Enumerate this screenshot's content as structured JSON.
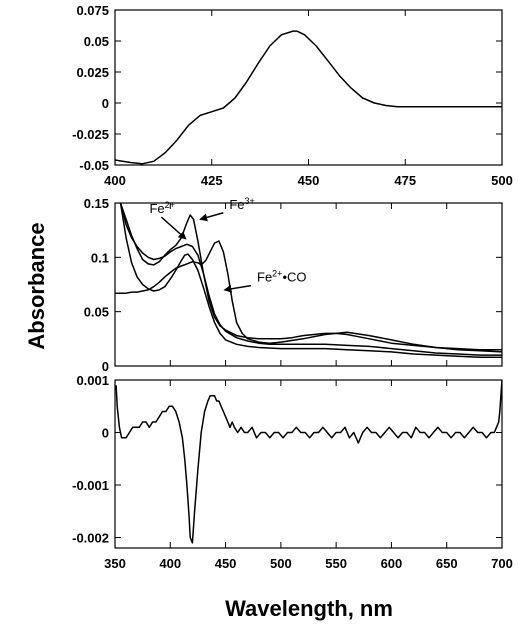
{
  "figure": {
    "ylabel": "Absorbance",
    "xlabel": "Wavelength, nm"
  },
  "chart_data": [
    {
      "type": "line",
      "x_ticks": [
        400,
        425,
        450,
        475,
        500
      ],
      "y_ticks": [
        -0.05,
        -0.025,
        0,
        0.025,
        0.05,
        0.075
      ],
      "xlim": [
        400,
        500
      ],
      "ylim": [
        -0.05,
        0.075
      ],
      "series": [
        {
          "x": [
            400,
            404,
            407,
            410,
            413,
            416,
            419,
            422,
            425,
            428,
            431,
            434,
            437,
            440,
            443,
            446,
            447,
            449,
            452,
            455,
            458,
            461,
            464,
            467,
            470,
            473,
            476,
            480,
            485,
            490,
            495,
            500
          ],
          "y": [
            -0.046,
            -0.048,
            -0.049,
            -0.047,
            -0.04,
            -0.03,
            -0.018,
            -0.01,
            -0.007,
            -0.004,
            0.004,
            0.017,
            0.032,
            0.046,
            0.055,
            0.058,
            0.058,
            0.055,
            0.046,
            0.034,
            0.022,
            0.012,
            0.004,
            0.0,
            -0.002,
            -0.003,
            -0.003,
            -0.003,
            -0.003,
            -0.003,
            -0.003,
            -0.003
          ]
        }
      ]
    },
    {
      "type": "line",
      "x_ticks": [
        350,
        400,
        450,
        500,
        550,
        600,
        650,
        700
      ],
      "y_ticks": [
        0,
        0.05,
        0.1,
        0.15
      ],
      "xlim": [
        350,
        700
      ],
      "ylim": [
        0,
        0.15
      ],
      "annotations": [
        {
          "label": "Fe",
          "sup": "2+",
          "tail": "",
          "ax": 392,
          "ay": 0.137,
          "tx": 414,
          "ty": 0.117
        },
        {
          "label": "Fe",
          "sup": "3+",
          "tail": "",
          "ax": 448,
          "ay": 0.141,
          "tx": 427,
          "ty": 0.135
        },
        {
          "label": "Fe",
          "sup": "2+",
          "tail": "•CO",
          "ax": 473,
          "ay": 0.074,
          "tx": 449,
          "ty": 0.07
        }
      ],
      "series": [
        {
          "x": [
            355,
            360,
            365,
            370,
            375,
            380,
            385,
            390,
            395,
            400,
            405,
            410,
            415,
            418,
            421,
            425,
            430,
            435,
            440,
            445,
            450,
            460,
            470,
            480,
            490,
            500,
            510,
            520,
            530,
            540,
            550,
            560,
            570,
            580,
            590,
            600,
            620,
            640,
            660,
            680,
            700
          ],
          "y": [
            0.15,
            0.135,
            0.12,
            0.108,
            0.098,
            0.094,
            0.093,
            0.096,
            0.102,
            0.107,
            0.111,
            0.118,
            0.132,
            0.139,
            0.135,
            0.115,
            0.085,
            0.06,
            0.045,
            0.037,
            0.033,
            0.028,
            0.026,
            0.025,
            0.025,
            0.025,
            0.026,
            0.028,
            0.029,
            0.03,
            0.03,
            0.029,
            0.027,
            0.025,
            0.023,
            0.021,
            0.019,
            0.017,
            0.016,
            0.015,
            0.015
          ]
        },
        {
          "x": [
            355,
            360,
            365,
            370,
            375,
            380,
            385,
            390,
            395,
            400,
            405,
            410,
            415,
            420,
            425,
            430,
            435,
            440,
            445,
            450,
            460,
            470,
            480,
            490,
            500,
            520,
            540,
            560,
            580,
            600,
            620,
            640,
            660,
            680,
            700
          ],
          "y": [
            0.15,
            0.13,
            0.118,
            0.11,
            0.104,
            0.1,
            0.098,
            0.099,
            0.101,
            0.105,
            0.108,
            0.11,
            0.112,
            0.11,
            0.102,
            0.085,
            0.065,
            0.048,
            0.038,
            0.032,
            0.026,
            0.023,
            0.021,
            0.02,
            0.02,
            0.02,
            0.02,
            0.019,
            0.018,
            0.016,
            0.014,
            0.012,
            0.011,
            0.01,
            0.01
          ]
        },
        {
          "x": [
            350,
            355,
            360,
            365,
            370,
            375,
            380,
            385,
            390,
            395,
            400,
            405,
            410,
            415,
            420,
            425,
            428,
            432,
            437,
            440,
            444,
            448,
            452,
            456,
            460,
            465,
            470,
            480,
            490,
            500,
            520,
            540,
            560,
            580,
            600,
            620,
            640,
            660,
            680,
            700
          ],
          "y": [
            0.067,
            0.067,
            0.067,
            0.068,
            0.068,
            0.069,
            0.07,
            0.073,
            0.077,
            0.082,
            0.086,
            0.09,
            0.092,
            0.094,
            0.096,
            0.095,
            0.093,
            0.097,
            0.107,
            0.113,
            0.115,
            0.105,
            0.085,
            0.06,
            0.04,
            0.03,
            0.025,
            0.022,
            0.021,
            0.022,
            0.025,
            0.029,
            0.031,
            0.028,
            0.024,
            0.02,
            0.017,
            0.015,
            0.014,
            0.013
          ]
        },
        {
          "x": [
            355,
            360,
            365,
            370,
            375,
            380,
            385,
            390,
            395,
            400,
            405,
            410,
            413,
            416,
            420,
            425,
            430,
            435,
            440,
            445,
            450,
            460,
            470,
            480,
            500,
            520,
            540,
            560,
            580,
            600,
            620,
            640,
            660,
            680,
            700
          ],
          "y": [
            0.15,
            0.118,
            0.095,
            0.082,
            0.075,
            0.071,
            0.069,
            0.07,
            0.073,
            0.08,
            0.088,
            0.097,
            0.102,
            0.103,
            0.098,
            0.088,
            0.072,
            0.055,
            0.04,
            0.03,
            0.024,
            0.02,
            0.018,
            0.017,
            0.016,
            0.016,
            0.016,
            0.015,
            0.014,
            0.013,
            0.011,
            0.01,
            0.009,
            0.008,
            0.008
          ]
        }
      ]
    },
    {
      "type": "line",
      "x_ticks": [
        350,
        400,
        450,
        500,
        550,
        600,
        650,
        700
      ],
      "y_ticks": [
        -0.002,
        -0.001,
        0,
        0.001
      ],
      "xlim": [
        350,
        700
      ],
      "ylim": [
        -0.0022,
        0.001
      ],
      "series": [
        {
          "x": [
            351,
            352,
            354,
            356,
            358,
            360,
            363,
            366,
            369,
            372,
            375,
            378,
            381,
            384,
            387,
            390,
            393,
            396,
            399,
            402,
            405,
            408,
            411,
            413,
            415,
            417,
            418,
            420,
            422,
            425,
            428,
            431,
            434,
            436,
            438,
            440,
            442,
            444,
            446,
            448,
            450,
            452,
            454,
            456,
            458,
            461,
            464,
            467,
            470,
            474,
            478,
            482,
            486,
            490,
            494,
            498,
            502,
            506,
            510,
            514,
            518,
            522,
            526,
            530,
            534,
            538,
            542,
            546,
            550,
            554,
            558,
            562,
            566,
            570,
            574,
            578,
            582,
            586,
            590,
            594,
            598,
            602,
            606,
            610,
            614,
            618,
            622,
            626,
            630,
            634,
            638,
            642,
            646,
            650,
            654,
            658,
            662,
            666,
            670,
            674,
            678,
            682,
            686,
            690,
            693,
            695,
            697,
            698,
            699,
            700
          ],
          "y": [
            0.0009,
            0.0005,
            0.0001,
            -0.0001,
            -0.0001,
            -0.0001,
            0.0,
            0.0001,
            0.0001,
            0.0001,
            0.0002,
            0.0002,
            0.0001,
            0.0002,
            0.0002,
            0.0003,
            0.0004,
            0.0004,
            0.0005,
            0.0005,
            0.0004,
            0.0002,
            -0.0001,
            -0.0005,
            -0.001,
            -0.0016,
            -0.002,
            -0.0021,
            -0.0015,
            -0.0007,
            0.0,
            0.0004,
            0.0006,
            0.0007,
            0.0007,
            0.0007,
            0.0006,
            0.0006,
            0.0005,
            0.0004,
            0.0003,
            0.0002,
            0.0001,
            0.0002,
            0.0001,
            0.0,
            0.0001,
            0.0,
            0.0,
            0.0001,
            -0.0001,
            0.0,
            0.0,
            -0.0001,
            0.0,
            0.0,
            -0.0001,
            0.0,
            0.0,
            0.0001,
            0.0,
            0.0,
            -0.0001,
            0.0,
            0.0,
            0.0001,
            0.0,
            -0.0001,
            0.0,
            0.0,
            0.0001,
            -0.0001,
            0.0,
            -0.0002,
            0.0,
            0.0001,
            0.0,
            0.0,
            -0.0001,
            0.0,
            0.0001,
            0.0,
            -0.0001,
            0.0,
            0.0,
            -0.0001,
            0.0001,
            0.0,
            0.0,
            -0.0001,
            0.0,
            0.0001,
            0.0,
            0.0,
            -0.0001,
            0.0,
            0.0,
            -0.0001,
            0.0,
            0.0001,
            0.0,
            0.0,
            -0.0001,
            0.0,
            0.0,
            0.0001,
            0.0002,
            0.0004,
            0.0007,
            0.001
          ]
        }
      ]
    }
  ]
}
